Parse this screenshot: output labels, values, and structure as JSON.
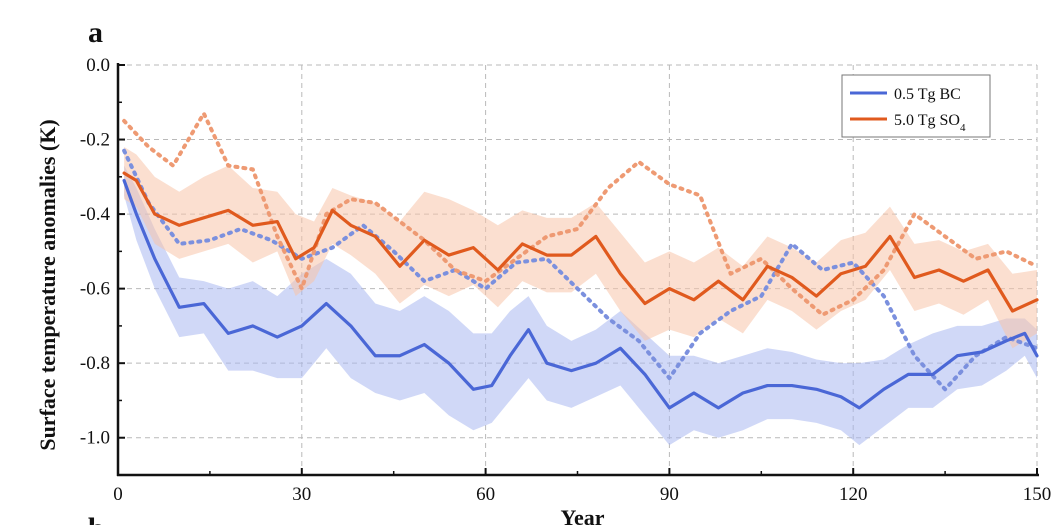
{
  "panel_letter": "a",
  "next_panel_letter": "b",
  "chart_data": {
    "type": "line",
    "title": "",
    "xlabel": "Year",
    "ylabel": "Surface temperature anomalies (K)",
    "xlim": [
      0,
      150
    ],
    "ylim": [
      -1.1,
      0.0
    ],
    "xticks": [
      0,
      30,
      60,
      90,
      120,
      150
    ],
    "yticks": [
      0.0,
      -0.2,
      -0.4,
      -0.6,
      -0.8,
      -1.0
    ],
    "ytick_labels": [
      "0.0",
      "-0.2",
      "-0.4",
      "-0.6",
      "-0.8",
      "-1.0"
    ],
    "grid": true,
    "legend_position": "top-right",
    "series": [
      {
        "name": "0.5 Tg BC",
        "color": "#4a67d6",
        "band_color": "#aab8f0",
        "x": [
          1,
          3,
          6,
          10,
          14,
          18,
          22,
          26,
          30,
          34,
          38,
          42,
          46,
          50,
          54,
          58,
          61,
          64,
          67,
          70,
          74,
          78,
          82,
          86,
          90,
          94,
          98,
          102,
          106,
          110,
          114,
          118,
          121,
          125,
          129,
          133,
          137,
          141,
          145,
          148,
          150
        ],
        "values": [
          -0.31,
          -0.4,
          -0.52,
          -0.65,
          -0.64,
          -0.72,
          -0.7,
          -0.73,
          -0.7,
          -0.64,
          -0.7,
          -0.78,
          -0.78,
          -0.75,
          -0.8,
          -0.87,
          -0.86,
          -0.78,
          -0.71,
          -0.8,
          -0.82,
          -0.8,
          -0.76,
          -0.83,
          -0.92,
          -0.88,
          -0.92,
          -0.88,
          -0.86,
          -0.86,
          -0.87,
          -0.89,
          -0.92,
          -0.87,
          -0.83,
          -0.83,
          -0.78,
          -0.77,
          -0.74,
          -0.72,
          -0.78
        ],
        "band_upper": [
          -0.27,
          -0.33,
          -0.44,
          -0.57,
          -0.58,
          -0.6,
          -0.58,
          -0.62,
          -0.56,
          -0.52,
          -0.56,
          -0.64,
          -0.66,
          -0.62,
          -0.66,
          -0.72,
          -0.72,
          -0.66,
          -0.62,
          -0.7,
          -0.74,
          -0.71,
          -0.66,
          -0.72,
          -0.78,
          -0.78,
          -0.8,
          -0.78,
          -0.76,
          -0.77,
          -0.79,
          -0.8,
          -0.8,
          -0.79,
          -0.75,
          -0.72,
          -0.7,
          -0.7,
          -0.68,
          -0.68,
          -0.71
        ],
        "band_lower": [
          -0.35,
          -0.47,
          -0.6,
          -0.73,
          -0.72,
          -0.82,
          -0.82,
          -0.84,
          -0.84,
          -0.76,
          -0.84,
          -0.88,
          -0.9,
          -0.88,
          -0.94,
          -0.98,
          -0.96,
          -0.9,
          -0.84,
          -0.9,
          -0.92,
          -0.89,
          -0.86,
          -0.94,
          -1.02,
          -0.98,
          -1.0,
          -0.98,
          -0.95,
          -0.95,
          -0.96,
          -0.98,
          -1.02,
          -0.97,
          -0.92,
          -0.92,
          -0.87,
          -0.86,
          -0.82,
          -0.78,
          -0.84
        ]
      },
      {
        "name": "5.0 Tg SO4",
        "color": "#e05a1e",
        "band_color": "#f7c4aa",
        "x": [
          1,
          3,
          6,
          10,
          14,
          18,
          22,
          26,
          29,
          32,
          35,
          38,
          42,
          46,
          50,
          54,
          58,
          62,
          66,
          70,
          74,
          78,
          82,
          86,
          90,
          94,
          98,
          102,
          106,
          110,
          114,
          118,
          122,
          126,
          130,
          134,
          138,
          142,
          146,
          150
        ],
        "values": [
          -0.29,
          -0.31,
          -0.4,
          -0.43,
          -0.41,
          -0.39,
          -0.43,
          -0.42,
          -0.52,
          -0.49,
          -0.39,
          -0.43,
          -0.46,
          -0.54,
          -0.47,
          -0.51,
          -0.49,
          -0.55,
          -0.48,
          -0.51,
          -0.51,
          -0.46,
          -0.56,
          -0.64,
          -0.6,
          -0.63,
          -0.58,
          -0.63,
          -0.54,
          -0.57,
          -0.62,
          -0.56,
          -0.54,
          -0.46,
          -0.57,
          -0.55,
          -0.58,
          -0.55,
          -0.66,
          -0.63
        ],
        "band_upper": [
          -0.22,
          -0.24,
          -0.3,
          -0.34,
          -0.3,
          -0.27,
          -0.33,
          -0.34,
          -0.4,
          -0.42,
          -0.33,
          -0.35,
          -0.37,
          -0.42,
          -0.34,
          -0.36,
          -0.39,
          -0.43,
          -0.39,
          -0.41,
          -0.41,
          -0.37,
          -0.45,
          -0.53,
          -0.5,
          -0.53,
          -0.49,
          -0.54,
          -0.46,
          -0.49,
          -0.53,
          -0.47,
          -0.45,
          -0.38,
          -0.48,
          -0.47,
          -0.5,
          -0.48,
          -0.56,
          -0.55
        ],
        "band_lower": [
          -0.36,
          -0.38,
          -0.48,
          -0.52,
          -0.5,
          -0.48,
          -0.53,
          -0.5,
          -0.62,
          -0.58,
          -0.48,
          -0.51,
          -0.56,
          -0.64,
          -0.59,
          -0.62,
          -0.59,
          -0.65,
          -0.58,
          -0.61,
          -0.61,
          -0.56,
          -0.66,
          -0.74,
          -0.71,
          -0.73,
          -0.68,
          -0.72,
          -0.63,
          -0.66,
          -0.71,
          -0.66,
          -0.63,
          -0.55,
          -0.66,
          -0.64,
          -0.67,
          -0.63,
          -0.76,
          -0.72
        ]
      }
    ],
    "dotted_series": [
      {
        "color": "#7b90de",
        "x": [
          1,
          5,
          10,
          15,
          20,
          25,
          30,
          35,
          40,
          45,
          50,
          55,
          60,
          65,
          70,
          75,
          80,
          85,
          90,
          95,
          100,
          105,
          110,
          115,
          120,
          125,
          130,
          135,
          140,
          145,
          150
        ],
        "values": [
          -0.23,
          -0.37,
          -0.48,
          -0.47,
          -0.44,
          -0.47,
          -0.52,
          -0.49,
          -0.43,
          -0.5,
          -0.58,
          -0.55,
          -0.6,
          -0.53,
          -0.52,
          -0.6,
          -0.68,
          -0.74,
          -0.84,
          -0.72,
          -0.66,
          -0.62,
          -0.48,
          -0.55,
          -0.53,
          -0.62,
          -0.78,
          -0.87,
          -0.78,
          -0.73,
          -0.76
        ]
      },
      {
        "color": "#ee9a73",
        "x": [
          1,
          5,
          9,
          14,
          18,
          22,
          26,
          30,
          34,
          38,
          42,
          46,
          50,
          55,
          60,
          65,
          70,
          75,
          80,
          85,
          90,
          95,
          100,
          105,
          110,
          115,
          120,
          125,
          130,
          135,
          140,
          145,
          150
        ],
        "values": [
          -0.15,
          -0.22,
          -0.27,
          -0.13,
          -0.27,
          -0.28,
          -0.46,
          -0.6,
          -0.4,
          -0.36,
          -0.37,
          -0.42,
          -0.47,
          -0.55,
          -0.58,
          -0.52,
          -0.46,
          -0.44,
          -0.33,
          -0.26,
          -0.32,
          -0.35,
          -0.56,
          -0.52,
          -0.6,
          -0.67,
          -0.63,
          -0.55,
          -0.4,
          -0.46,
          -0.52,
          -0.5,
          -0.54
        ]
      }
    ]
  }
}
